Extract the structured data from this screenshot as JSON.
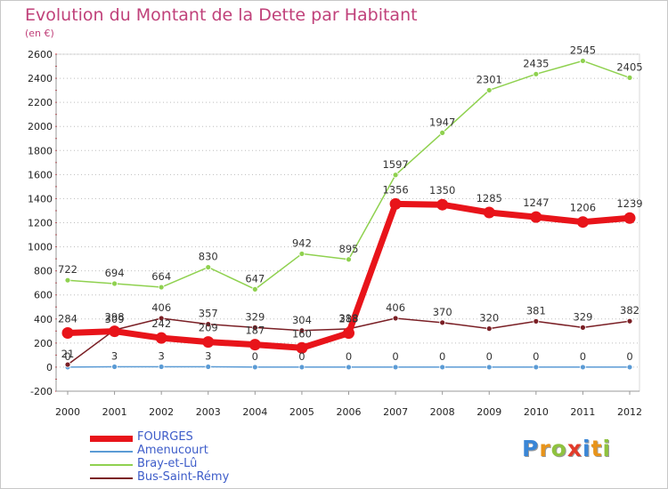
{
  "chart_data": {
    "type": "line",
    "title": "Evolution du Montant de la Dette par Habitant",
    "subtitle": "(en €)",
    "categories": [
      "2000",
      "2001",
      "2002",
      "2003",
      "2004",
      "2005",
      "2006",
      "2007",
      "2008",
      "2009",
      "2010",
      "2011",
      "2012"
    ],
    "ylim": [
      -200,
      2600
    ],
    "yticks": [
      -200,
      0,
      200,
      400,
      600,
      800,
      1000,
      1200,
      1400,
      1600,
      1800,
      2000,
      2200,
      2400,
      2600
    ],
    "grid": "horizontal dotted",
    "legend_position": "bottom-left",
    "series": [
      {
        "name": "FOURGES",
        "values": [
          284,
          298,
          242,
          209,
          187,
          160,
          283,
          1356,
          1350,
          1285,
          1247,
          1206,
          1239
        ],
        "color": "#e8141a"
      },
      {
        "name": "Amenucourt",
        "values": [
          0,
          3,
          3,
          3,
          0,
          0,
          0,
          0,
          0,
          0,
          0,
          0,
          0
        ],
        "color": "#5b9bd5"
      },
      {
        "name": "Bray-et-Lû",
        "values": [
          722,
          694,
          664,
          830,
          647,
          942,
          895,
          1597,
          1947,
          2301,
          2435,
          2545,
          2405
        ],
        "color": "#8fd14f"
      },
      {
        "name": "Bus-Saint-Rémy",
        "values": [
          21,
          309,
          406,
          357,
          329,
          304,
          318,
          406,
          370,
          320,
          381,
          329,
          382
        ],
        "color": "#7a1f25"
      }
    ]
  },
  "logo": {
    "letters": [
      "P",
      "r",
      "o",
      "x",
      "i",
      "t",
      "i"
    ],
    "colors": [
      "#3a86d6",
      "#e8941a",
      "#8fc23f",
      "#e23b2a",
      "#3a86d6",
      "#e8941a",
      "#8fc23f"
    ]
  }
}
